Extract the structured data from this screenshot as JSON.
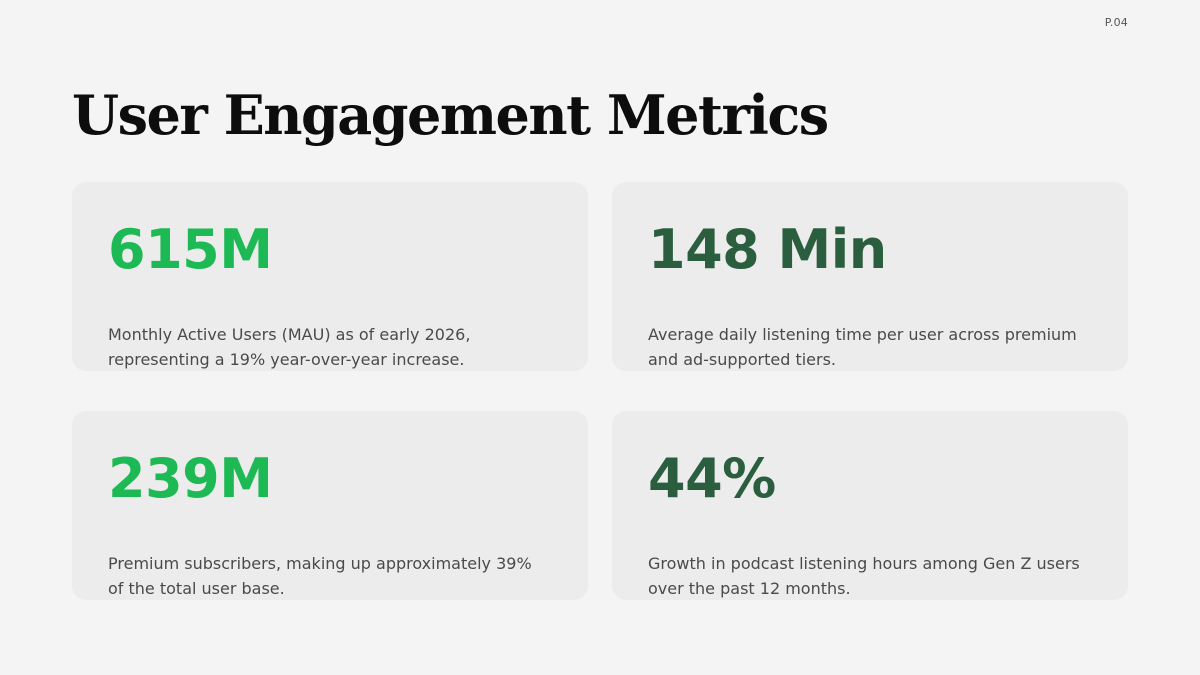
{
  "page_number": "P.04",
  "title": "User Engagement Metrics",
  "colors": {
    "background": "#f4f4f4",
    "card_background": "#ececec",
    "bright_green": "#1db954",
    "dark_green": "#2a5e3e",
    "title": "#0d0d0d",
    "body_text": "#4a4a4a"
  },
  "cards": [
    {
      "value": "615M",
      "color": "#1db954",
      "description": "Monthly Active Users (MAU) as of early 2026, representing a 19% year-over-year increase."
    },
    {
      "value": "148 Min",
      "color": "#2a5e3e",
      "description": "Average daily listening time per user across premium and ad-supported tiers."
    },
    {
      "value": "239M",
      "color": "#1db954",
      "description": "Premium subscribers, making up approximately 39% of the total user base."
    },
    {
      "value": "44%",
      "color": "#2a5e3e",
      "description": "Growth in podcast listening hours among Gen Z users over the past 12 months."
    }
  ]
}
